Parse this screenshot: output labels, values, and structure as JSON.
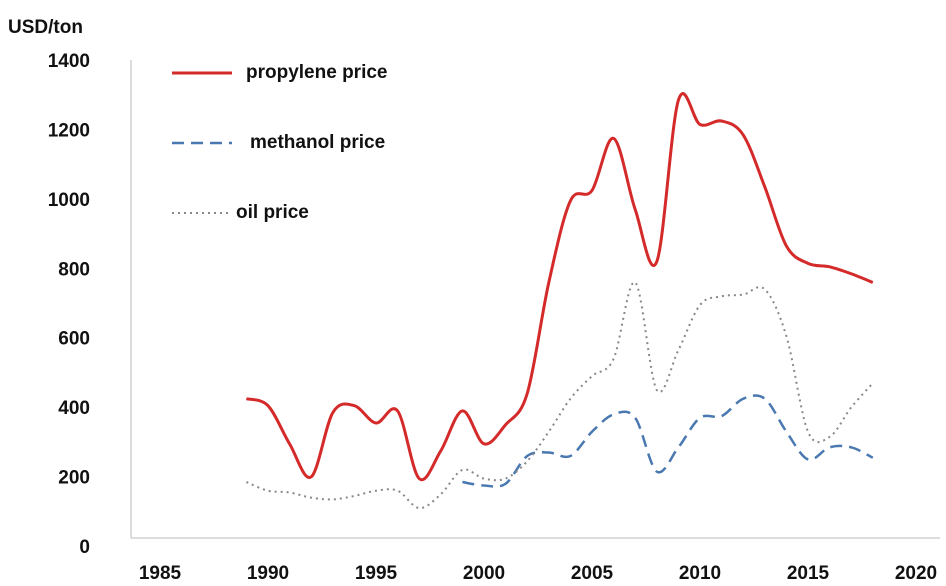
{
  "chart_data": {
    "type": "line",
    "y_axis_label": "USD/ton",
    "x": [
      1989,
      1990,
      1991,
      1992,
      1993,
      1994,
      1995,
      1996,
      1997,
      1998,
      1999,
      2000,
      2001,
      2002,
      2003,
      2004,
      2005,
      2006,
      2007,
      2008,
      2009,
      2010,
      2011,
      2012,
      2013,
      2014,
      2015,
      2016,
      2017,
      2018
    ],
    "series": [
      {
        "name": "propylene price",
        "color": "#d42a2a",
        "dash": "solid",
        "values": [
          430,
          410,
          300,
          205,
          390,
          410,
          360,
          395,
          200,
          280,
          395,
          300,
          355,
          445,
          765,
          1000,
          1030,
          1180,
          975,
          825,
          1290,
          1220,
          1230,
          1190,
          1040,
          870,
          820,
          810,
          790,
          765
        ]
      },
      {
        "name": "methanol price",
        "color": "#4a78b0",
        "dash": "dashed",
        "values": [
          null,
          null,
          null,
          null,
          null,
          null,
          null,
          null,
          null,
          null,
          190,
          180,
          185,
          265,
          275,
          265,
          335,
          385,
          375,
          220,
          290,
          375,
          380,
          430,
          430,
          335,
          255,
          290,
          290,
          260
        ]
      },
      {
        "name": "oil price",
        "color": "#888888",
        "dash": "dotted",
        "values": [
          190,
          165,
          160,
          145,
          140,
          150,
          165,
          165,
          115,
          155,
          225,
          200,
          200,
          250,
          335,
          430,
          495,
          545,
          765,
          455,
          570,
          700,
          725,
          730,
          745,
          610,
          335,
          320,
          405,
          475
        ]
      }
    ],
    "xlim": [
      1985,
      2020
    ],
    "xticks": [
      1985,
      1990,
      1995,
      2000,
      2005,
      2010,
      2015,
      2020
    ],
    "ylim": [
      0,
      1400
    ],
    "yticks": [
      0,
      200,
      400,
      600,
      800,
      1000,
      1200,
      1400
    ],
    "grid": false,
    "legend": "top-left"
  }
}
